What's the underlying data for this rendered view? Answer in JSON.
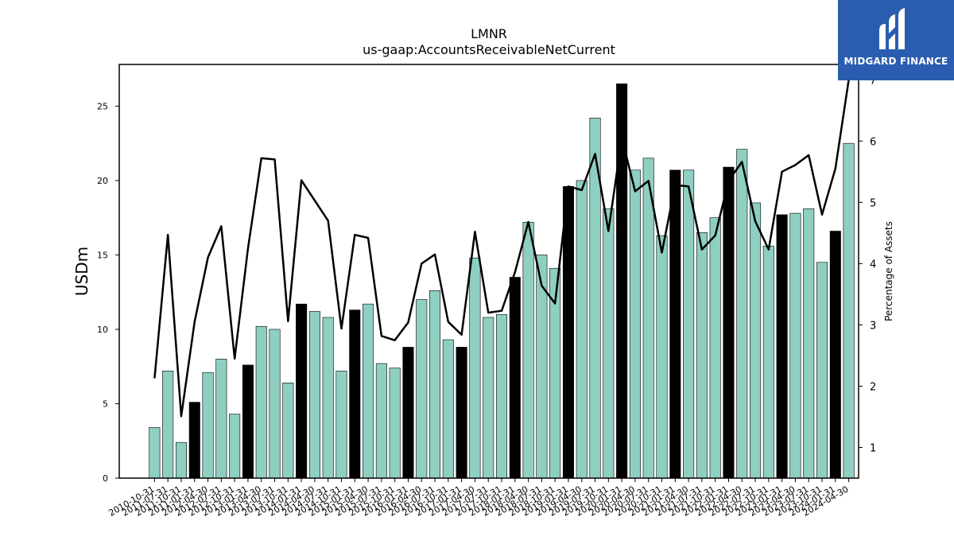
{
  "chart_data": {
    "type": "bar",
    "title": "LMNR",
    "subtitle": "us-gaap:AccountsReceivableNetCurrent",
    "ylabel": "USDm",
    "y2label": "Percentage of Assets",
    "ylim": [
      0,
      27.8
    ],
    "y2lim": [
      0.5,
      7.25
    ],
    "yticks": [
      0,
      5,
      10,
      15,
      20,
      25
    ],
    "y2ticks": [
      1,
      2,
      3,
      4,
      5,
      6,
      7
    ],
    "bar_color": "#8ecfc2",
    "highlight_color": "#000000",
    "line_color": "#000000",
    "categories": [
      "2010-10-31",
      "2011-07-31",
      "2011-10-31",
      "2011-01-31",
      "2012-04-30",
      "2012-07-31",
      "2012-10-31",
      "2013-01-31",
      "2013-04-30",
      "2013-07-31",
      "2013-10-31",
      "2014-01-31",
      "2014-04-30",
      "2014-07-31",
      "2014-10-31",
      "2015-01-31",
      "2015-04-30",
      "2015-07-31",
      "2015-10-31",
      "2016-01-31",
      "2016-04-30",
      "2016-07-31",
      "2016-10-31",
      "2017-01-31",
      "2017-04-30",
      "2017-07-31",
      "2017-10-31",
      "2018-01-31",
      "2018-04-30",
      "2018-07-31",
      "2018-10-31",
      "2019-01-31",
      "2019-04-30",
      "2019-07-31",
      "2019-10-31",
      "2020-01-31",
      "2020-04-30",
      "2020-07-31",
      "2020-10-31",
      "2021-01-31",
      "2021-04-30",
      "2021-07-31",
      "2021-10-31",
      "2022-01-31",
      "2022-04-30",
      "2022-07-31",
      "2022-10-31",
      "2023-01-31",
      "2023-04-30",
      "2023-07-31",
      "2023-10-31",
      "2024-01-31",
      "2024-04-30"
    ],
    "series": [
      {
        "type": "bar",
        "values": [
          3.4,
          7.2,
          2.4,
          5.1,
          7.1,
          8.0,
          4.3,
          7.6,
          10.2,
          10.0,
          6.4,
          11.7,
          11.2,
          10.8,
          7.2,
          11.3,
          11.7,
          7.7,
          7.4,
          8.8,
          12.0,
          12.6,
          9.3,
          8.8,
          14.8,
          10.8,
          11.0,
          13.5,
          17.2,
          15.0,
          14.1,
          19.6,
          20.0,
          24.2,
          18.1,
          26.5,
          20.7,
          21.5,
          16.3,
          20.7,
          20.7,
          16.5,
          17.5,
          20.9,
          22.1,
          18.5,
          15.6,
          17.7,
          17.8,
          18.1,
          14.5,
          16.6,
          22.5
        ],
        "highlight": [
          false,
          false,
          false,
          true,
          false,
          false,
          false,
          true,
          false,
          false,
          false,
          true,
          false,
          false,
          false,
          true,
          false,
          false,
          false,
          true,
          false,
          false,
          false,
          true,
          false,
          false,
          false,
          true,
          false,
          false,
          false,
          true,
          false,
          false,
          false,
          true,
          false,
          false,
          false,
          true,
          false,
          false,
          false,
          true,
          false,
          false,
          false,
          true,
          false,
          false,
          false,
          true,
          false
        ]
      },
      {
        "type": "line",
        "axis": "right",
        "values": [
          2.13,
          4.47,
          1.51,
          3.05,
          4.1,
          4.61,
          2.45,
          4.25,
          5.72,
          5.7,
          3.06,
          5.36,
          5.03,
          4.7,
          2.94,
          4.47,
          4.42,
          2.82,
          2.75,
          3.04,
          4.0,
          4.15,
          3.05,
          2.84,
          4.52,
          3.2,
          3.23,
          3.86,
          4.68,
          3.64,
          3.35,
          5.26,
          5.2,
          5.79,
          4.53,
          6.05,
          5.18,
          5.35,
          4.18,
          5.28,
          5.26,
          4.23,
          4.46,
          5.35,
          5.66,
          4.69,
          4.23,
          5.5,
          5.61,
          5.77,
          4.8,
          5.55,
          7.0
        ]
      }
    ]
  },
  "logo": {
    "text": "MIDGARD FINANCE"
  }
}
